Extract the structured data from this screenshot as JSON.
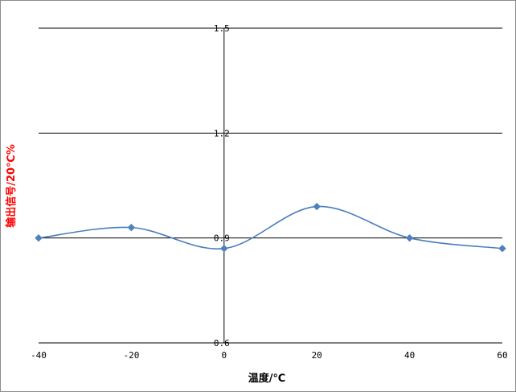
{
  "chart_data": {
    "type": "line",
    "xlabel": "温度/℃",
    "ylabel": "输出信号/20℃%",
    "x": [
      -40,
      -20,
      0,
      20,
      40,
      60
    ],
    "series": [
      {
        "values": [
          0.9,
          0.93,
          0.87,
          0.99,
          0.9,
          0.87
        ]
      }
    ],
    "xlim": [
      -40,
      60
    ],
    "ylim": [
      0.6,
      1.5
    ],
    "x_ticks": [
      "-40",
      "-20",
      "0",
      "20",
      "40",
      "60"
    ],
    "y_ticks": [
      "0.6",
      "0.9",
      "1.2",
      "1.5"
    ],
    "grid": "horizontal major gridlines",
    "line_style": "smoothed",
    "marker": "diamond",
    "colors": {
      "series": "#4a7ebb",
      "marker": "#4f81bd",
      "ylabel": "#ff0000",
      "xlabel": "#000000",
      "grid": "#000000"
    }
  }
}
